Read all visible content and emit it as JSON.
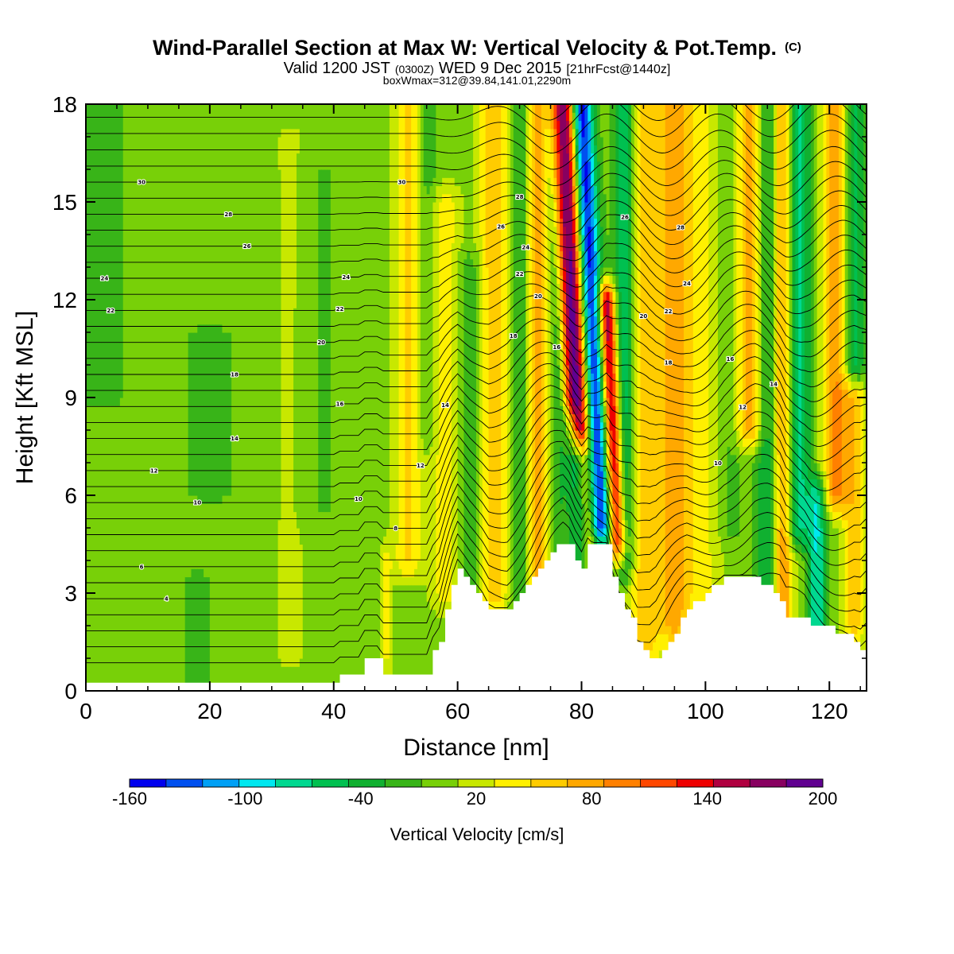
{
  "chart_data": {
    "type": "heatmap",
    "title": "Wind-Parallel Section at Max W: Vertical Velocity & Pot.Temp.",
    "title_suffix": "(C)",
    "subtitle": {
      "part1": "Valid 1200 JST",
      "part2": "(0300Z)",
      "part3": "WED 9 Dec 2015",
      "part4": "[21hrFcst@1440z]"
    },
    "subtitle2": "boxWmax=312@39.84,141.01,2290m",
    "xlabel": "Distance [nm]",
    "ylabel": "Height [Kft MSL]",
    "xlim": [
      0,
      126
    ],
    "ylim": [
      0,
      18
    ],
    "xticks": [
      "0",
      "20",
      "40",
      "60",
      "80",
      "100",
      "120"
    ],
    "yticks": [
      "0",
      "3",
      "6",
      "9",
      "12",
      "15",
      "18"
    ],
    "colorbar": {
      "label": "Vertical Velocity [cm/s]",
      "tick_labels": [
        "-160",
        "-100",
        "-40",
        "20",
        "80",
        "140",
        "200"
      ],
      "levels": [
        -160,
        -140,
        -120,
        -100,
        -80,
        -60,
        -40,
        -20,
        0,
        20,
        40,
        60,
        80,
        100,
        120,
        140,
        160,
        180,
        200
      ],
      "colors": [
        "#0000ee",
        "#0050f0",
        "#00a0f5",
        "#00e8f0",
        "#00d890",
        "#00c050",
        "#10b030",
        "#38b418",
        "#78d008",
        "#c8e800",
        "#fff000",
        "#ffcc00",
        "#ffa800",
        "#ff8000",
        "#ff4800",
        "#ee0000",
        "#b00040",
        "#880060",
        "#600090"
      ]
    },
    "background_w": 10,
    "w_features": [
      {
        "x": 2,
        "y0": 9,
        "y1": 18,
        "half_width": 6,
        "value": -15
      },
      {
        "x": 20,
        "y0": 6,
        "y1": 11,
        "half_width": 8,
        "value": -12
      },
      {
        "x": 33,
        "y0": 1,
        "y1": 17,
        "half_width": 3,
        "value": 15
      },
      {
        "x": 18,
        "y0": 0,
        "y1": 3.5,
        "half_width": 5,
        "value": -12
      },
      {
        "x": 38,
        "y0": 5.5,
        "y1": 16,
        "half_width": 4,
        "value": -12
      },
      {
        "x": 48.5,
        "y0": 1,
        "y1": 4,
        "half_width": 1,
        "value": 35
      },
      {
        "x": 52,
        "y0": 4,
        "y1": 18,
        "half_width": 2.2,
        "value": 55
      },
      {
        "x": 55,
        "y0": 8,
        "y1": 18,
        "half_width": 1.8,
        "value": -25
      },
      {
        "x": 58,
        "y0": 3,
        "y1": 15,
        "half_width": 2.5,
        "value": 40
      },
      {
        "x": 62,
        "y0": 3,
        "y1": 13,
        "half_width": 2,
        "value": -30
      },
      {
        "x": 66,
        "y0": 3,
        "y1": 18,
        "half_width": 2.5,
        "value": 70
      },
      {
        "x": 70,
        "y0": 3,
        "y1": 18,
        "half_width": 2,
        "value": -40
      },
      {
        "x": 73,
        "y0": 3,
        "y1": 18,
        "half_width": 2,
        "value": 80
      },
      {
        "x": 76,
        "y0": 3.5,
        "y1": 18,
        "half_width": 2,
        "value": -35
      },
      {
        "x": 78.5,
        "y0": 9,
        "y1": 18,
        "half_width": 1.3,
        "value": 110
      },
      {
        "x": 79.5,
        "y0": 4,
        "y1": 7,
        "half_width": 1.6,
        "value": -160
      },
      {
        "x": 80,
        "y0": 4,
        "y1": 18,
        "half_width": 1.5,
        "value": 170
      },
      {
        "x": 82.5,
        "y0": 5,
        "y1": 18,
        "half_width": 1.8,
        "value": -160
      },
      {
        "x": 85,
        "y0": 4.5,
        "y1": 12,
        "half_width": 1.4,
        "value": 180
      },
      {
        "x": 87,
        "y0": 4,
        "y1": 18,
        "half_width": 1.6,
        "value": -80
      },
      {
        "x": 90,
        "y0": 1,
        "y1": 18,
        "half_width": 2.5,
        "value": 60
      },
      {
        "x": 95,
        "y0": 2,
        "y1": 18,
        "half_width": 3,
        "value": 80
      },
      {
        "x": 100,
        "y0": 3,
        "y1": 18,
        "half_width": 3,
        "value": 30
      },
      {
        "x": 104,
        "y0": 5,
        "y1": 18,
        "half_width": 2,
        "value": -20
      },
      {
        "x": 107,
        "y0": 8,
        "y1": 18,
        "half_width": 2.2,
        "value": 80
      },
      {
        "x": 110,
        "y0": 3,
        "y1": 18,
        "half_width": 1.8,
        "value": -50
      },
      {
        "x": 112.5,
        "y0": 2,
        "y1": 18,
        "half_width": 1.6,
        "value": 90
      },
      {
        "x": 115,
        "y0": 5,
        "y1": 18,
        "half_width": 1.8,
        "value": -80
      },
      {
        "x": 118,
        "y0": 2,
        "y1": 6,
        "half_width": 1.5,
        "value": -90
      },
      {
        "x": 121,
        "y0": 6,
        "y1": 18,
        "half_width": 2,
        "value": 90
      },
      {
        "x": 124,
        "y0": 10,
        "y1": 18,
        "half_width": 2,
        "value": -60
      },
      {
        "x": 124,
        "y0": 2,
        "y1": 9,
        "half_width": 2,
        "value": 60
      }
    ],
    "terrain_kft": [
      [
        0,
        0.3
      ],
      [
        40,
        0.3
      ],
      [
        41,
        0.5
      ],
      [
        44,
        0.5
      ],
      [
        45,
        0.9
      ],
      [
        47,
        0.9
      ],
      [
        48,
        0.6
      ],
      [
        55,
        0.6
      ],
      [
        56,
        1.2
      ],
      [
        57,
        1.5
      ],
      [
        58,
        2.4
      ],
      [
        59,
        3.2
      ],
      [
        60,
        3.8
      ],
      [
        61,
        3.5
      ],
      [
        62,
        3.2
      ],
      [
        63,
        3.0
      ],
      [
        64,
        2.8
      ],
      [
        65,
        2.5
      ],
      [
        68,
        2.5
      ],
      [
        70,
        3.0
      ],
      [
        73,
        3.8
      ],
      [
        75,
        4.3
      ],
      [
        77,
        4.6
      ],
      [
        78,
        4.4
      ],
      [
        79,
        4.0
      ],
      [
        80,
        3.8
      ],
      [
        81,
        4.5
      ],
      [
        84,
        4.5
      ],
      [
        85,
        3.6
      ],
      [
        86,
        3.0
      ],
      [
        88,
        2.2
      ],
      [
        89,
        1.5
      ],
      [
        91,
        1.0
      ],
      [
        92,
        1.0
      ],
      [
        94,
        1.5
      ],
      [
        97,
        2.5
      ],
      [
        100,
        3.0
      ],
      [
        103,
        3.5
      ],
      [
        108,
        3.5
      ],
      [
        110,
        3.2
      ],
      [
        112,
        2.8
      ],
      [
        113,
        2.3
      ],
      [
        114,
        2.3
      ],
      [
        116,
        2.3
      ],
      [
        117,
        2.1
      ],
      [
        118,
        2.0
      ],
      [
        120,
        1.9
      ],
      [
        122,
        1.8
      ],
      [
        124,
        1.6
      ],
      [
        125,
        1.3
      ],
      [
        126,
        1.3
      ]
    ],
    "theta_levels": [
      2,
      4,
      6,
      8,
      10,
      12,
      14,
      16,
      18,
      20,
      22,
      24,
      26,
      28,
      30,
      32
    ],
    "theta_labels": [
      {
        "text": "4",
        "x": 13,
        "level": 4
      },
      {
        "text": "6",
        "x": 9,
        "level": 6
      },
      {
        "text": "8",
        "x": 50,
        "level": 8
      },
      {
        "text": "10",
        "x": 18,
        "level": 10
      },
      {
        "text": "10",
        "x": 44,
        "level": 10
      },
      {
        "text": "10",
        "x": 102,
        "level": 10
      },
      {
        "text": "12",
        "x": 11,
        "level": 12
      },
      {
        "text": "12",
        "x": 54,
        "level": 12
      },
      {
        "text": "12",
        "x": 106,
        "level": 12
      },
      {
        "text": "14",
        "x": 24,
        "level": 14
      },
      {
        "text": "14",
        "x": 58,
        "level": 14
      },
      {
        "text": "14",
        "x": 111,
        "level": 14
      },
      {
        "text": "16",
        "x": 41,
        "level": 16
      },
      {
        "text": "16",
        "x": 76,
        "level": 16
      },
      {
        "text": "16",
        "x": 104,
        "level": 16
      },
      {
        "text": "18",
        "x": 24,
        "level": 18
      },
      {
        "text": "18",
        "x": 69,
        "level": 18
      },
      {
        "text": "18",
        "x": 94,
        "level": 18
      },
      {
        "text": "20",
        "x": 38,
        "level": 20
      },
      {
        "text": "20",
        "x": 73,
        "level": 20
      },
      {
        "text": "20",
        "x": 90,
        "level": 20
      },
      {
        "text": "22",
        "x": 4,
        "level": 22
      },
      {
        "text": "22",
        "x": 41,
        "level": 22
      },
      {
        "text": "22",
        "x": 70,
        "level": 22
      },
      {
        "text": "22",
        "x": 94,
        "level": 22
      },
      {
        "text": "24",
        "x": 3,
        "level": 24
      },
      {
        "text": "24",
        "x": 42,
        "level": 24
      },
      {
        "text": "24",
        "x": 71,
        "level": 24
      },
      {
        "text": "24",
        "x": 97,
        "level": 24
      },
      {
        "text": "26",
        "x": 26,
        "level": 26
      },
      {
        "text": "26",
        "x": 67,
        "level": 26
      },
      {
        "text": "26",
        "x": 87,
        "level": 26
      },
      {
        "text": "28",
        "x": 23,
        "level": 28
      },
      {
        "text": "28",
        "x": 70,
        "level": 28
      },
      {
        "text": "28",
        "x": 96,
        "level": 28
      },
      {
        "text": "30",
        "x": 9,
        "level": 30
      },
      {
        "text": "30",
        "x": 51,
        "level": 30
      }
    ]
  }
}
